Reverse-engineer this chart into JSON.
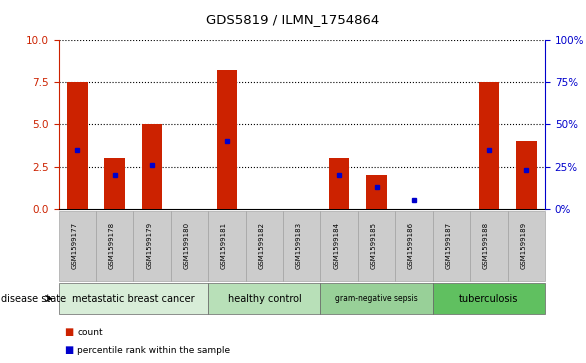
{
  "title": "GDS5819 / ILMN_1754864",
  "samples": [
    "GSM1599177",
    "GSM1599178",
    "GSM1599179",
    "GSM1599180",
    "GSM1599181",
    "GSM1599182",
    "GSM1599183",
    "GSM1599184",
    "GSM1599185",
    "GSM1599186",
    "GSM1599187",
    "GSM1599188",
    "GSM1599189"
  ],
  "red_bar_heights": [
    7.5,
    3.0,
    5.0,
    0.0,
    8.2,
    0.0,
    0.0,
    3.0,
    2.0,
    0.0,
    0.0,
    7.5,
    4.0
  ],
  "blue_marker_values": [
    3.5,
    2.0,
    2.6,
    0.0,
    4.0,
    0.0,
    0.0,
    2.0,
    1.3,
    0.5,
    0.0,
    3.5,
    2.3
  ],
  "blue_has_marker": [
    true,
    true,
    true,
    false,
    true,
    false,
    false,
    true,
    true,
    true,
    false,
    true,
    true
  ],
  "ylim_left": [
    0,
    10
  ],
  "ylim_right": [
    0,
    100
  ],
  "yticks_left": [
    0,
    2.5,
    5.0,
    7.5,
    10
  ],
  "yticks_right": [
    0,
    25,
    50,
    75,
    100
  ],
  "left_ycolor": "#cc2200",
  "right_ycolor": "#0000cc",
  "bar_color": "#cc2200",
  "blue_color": "#0000cc",
  "group_labels": [
    "metastatic breast cancer",
    "healthy control",
    "gram-negative sepsis",
    "tuberculosis"
  ],
  "group_starts": [
    0,
    4,
    7,
    10
  ],
  "group_ends": [
    4,
    7,
    10,
    13
  ],
  "group_colors": [
    "#d8edd8",
    "#b8e0b8",
    "#98d098",
    "#60c060"
  ],
  "sample_bg_color": "#cccccc",
  "grid_color": "#000000",
  "legend_count_label": "count",
  "legend_percentile_label": "percentile rank within the sample",
  "disease_state_label": "disease state"
}
